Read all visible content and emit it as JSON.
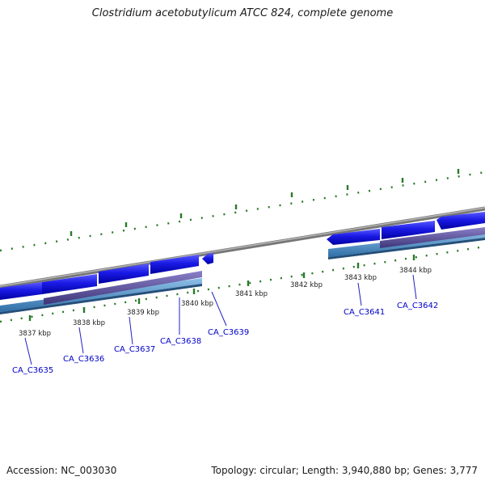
{
  "title": "Clostridium acetobutylicum ATCC 824, complete genome",
  "footer": {
    "accession": "Accession: NC_003030",
    "topology": "Topology: circular; Length: 3,940,880 bp; Genes: 3,777"
  },
  "kbp_labels": [
    "3837 kbp",
    "3838 kbp",
    "3839 kbp",
    "3840 kbp",
    "3841 kbp",
    "3842 kbp",
    "3843 kbp",
    "3844 kbp"
  ],
  "genes": [
    "CA_C3635",
    "CA_C3636",
    "CA_C3637",
    "CA_C3638",
    "CA_C3639",
    "CA_C3641",
    "CA_C3642"
  ],
  "colors": {
    "backbone": "#8a8a8a",
    "cds": "#1a1ae6",
    "gene_feature": "#5a4f9a",
    "feature_band": "#4a8fc8",
    "ticks": "#2a7a2a",
    "gene_label": "#0000c8"
  }
}
